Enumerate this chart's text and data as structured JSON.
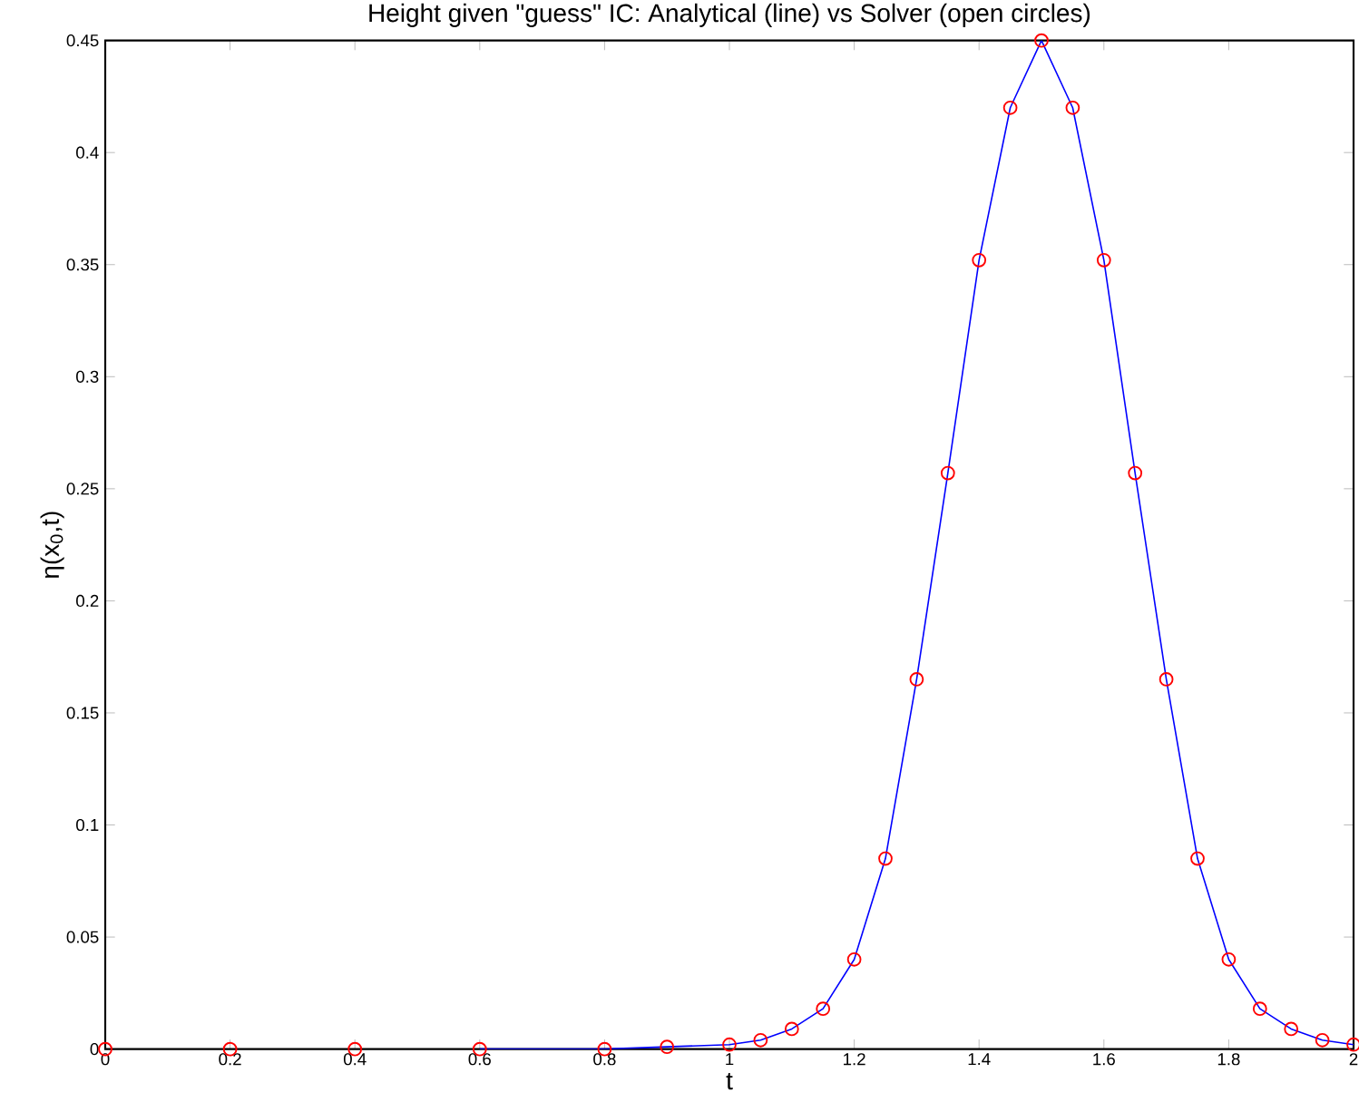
{
  "chart_data": {
    "type": "line",
    "title": "Height given \"guess\" IC: Analytical (line) vs Solver (open circles)",
    "xlabel": "t",
    "ylabel": "η(x$_{0}$,t)",
    "xlim": [
      0,
      2
    ],
    "ylim": [
      0,
      0.45
    ],
    "xticks": [
      0,
      0.2,
      0.4,
      0.6,
      0.8,
      1,
      1.2,
      1.4,
      1.6,
      1.8,
      2
    ],
    "yticks": [
      0,
      0.05,
      0.1,
      0.15,
      0.2,
      0.25,
      0.3,
      0.35,
      0.4,
      0.45
    ],
    "grid": false,
    "series": [
      {
        "color": "#0000ff",
        "line_style": "solid",
        "marker": "none",
        "x": [
          0.6,
          0.8,
          0.9,
          1.0,
          1.05,
          1.1,
          1.15,
          1.2,
          1.25,
          1.3,
          1.35,
          1.4,
          1.45,
          1.5,
          1.55,
          1.6,
          1.65,
          1.7,
          1.75,
          1.8,
          1.85,
          1.9,
          1.95,
          2.0
        ],
        "values": [
          0,
          0,
          0.001,
          0.002,
          0.004,
          0.009,
          0.018,
          0.04,
          0.085,
          0.165,
          0.257,
          0.352,
          0.42,
          0.45,
          0.42,
          0.352,
          0.257,
          0.165,
          0.085,
          0.04,
          0.018,
          0.009,
          0.004,
          0.002
        ]
      },
      {
        "type": "scatter",
        "color": "#ff0000",
        "marker": "circle",
        "x": [
          0,
          0.2,
          0.4,
          0.6,
          0.8,
          0.9,
          1.0,
          1.05,
          1.1,
          1.15,
          1.2,
          1.25,
          1.3,
          1.35,
          1.4,
          1.45,
          1.5,
          1.55,
          1.6,
          1.65,
          1.7,
          1.75,
          1.8,
          1.85,
          1.9,
          1.95,
          2.0
        ],
        "values": [
          0,
          0,
          0,
          0,
          0,
          0.001,
          0.002,
          0.004,
          0.009,
          0.018,
          0.04,
          0.085,
          0.165,
          0.257,
          0.352,
          0.42,
          0.45,
          0.42,
          0.352,
          0.257,
          0.165,
          0.085,
          0.04,
          0.018,
          0.009,
          0.004,
          0.002
        ]
      }
    ]
  }
}
